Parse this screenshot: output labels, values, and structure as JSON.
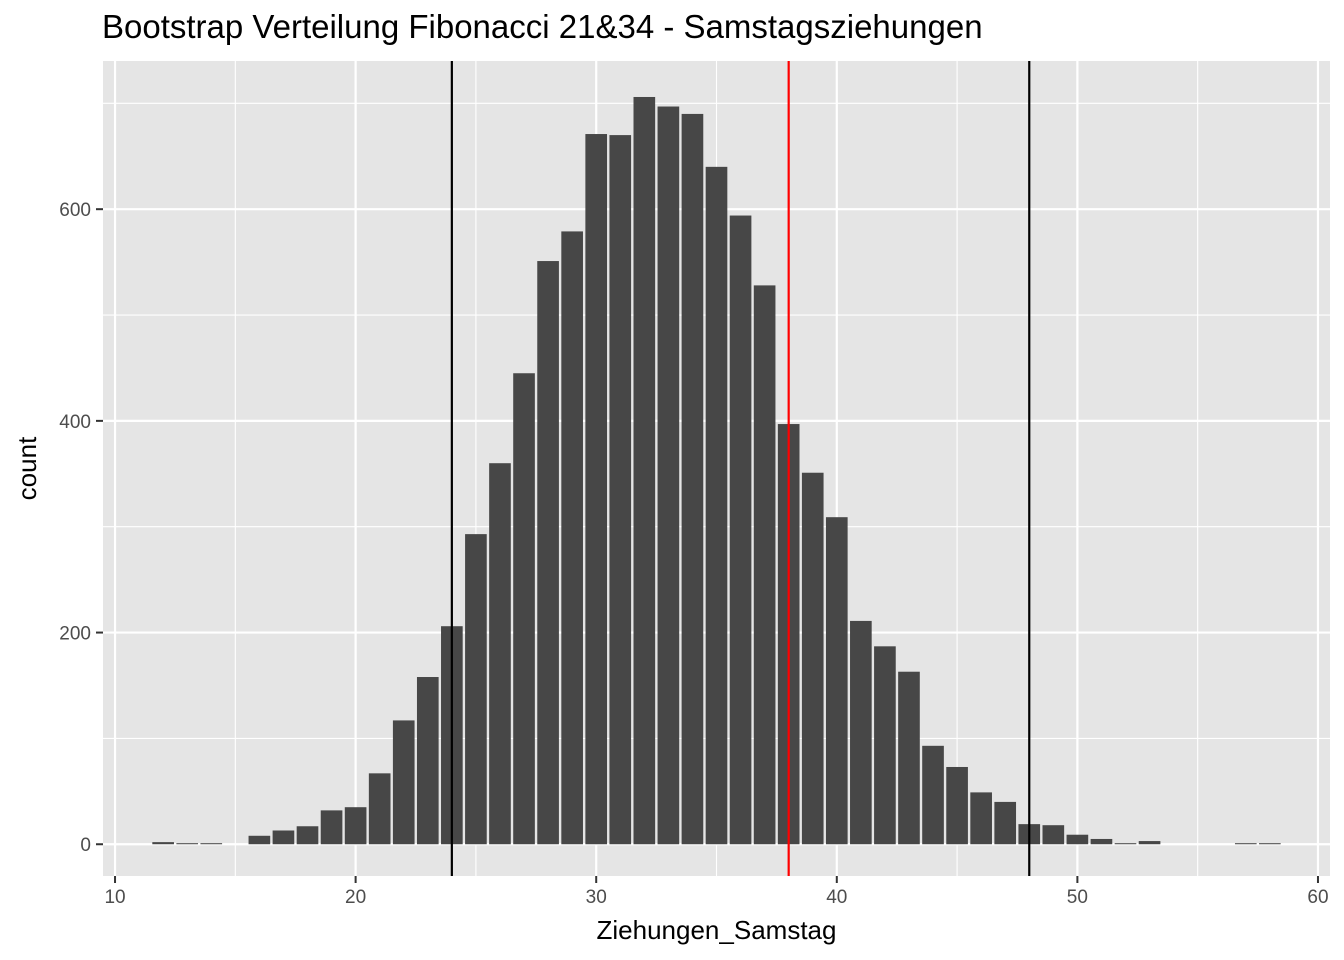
{
  "chart_data": {
    "type": "bar",
    "title": "Bootstrap Verteilung Fibonacci 21&34 - Samstagsziehungen",
    "xlabel": "Ziehungen_Samstag",
    "ylabel": "count",
    "xlim": [
      9.5,
      60.5
    ],
    "ylim": [
      -30,
      740
    ],
    "xticks": [
      10,
      20,
      30,
      40,
      50,
      60
    ],
    "yticks": [
      0,
      200,
      400,
      600
    ],
    "bar_width": 0.9,
    "x": [
      12,
      13,
      14,
      16,
      17,
      18,
      19,
      20,
      21,
      22,
      23,
      24,
      25,
      26,
      27,
      28,
      29,
      30,
      31,
      32,
      33,
      34,
      35,
      36,
      37,
      38,
      39,
      40,
      41,
      42,
      43,
      44,
      45,
      46,
      47,
      48,
      49,
      50,
      51,
      52,
      53,
      57,
      58
    ],
    "values": [
      2,
      1,
      1,
      8,
      13,
      17,
      32,
      35,
      67,
      117,
      158,
      206,
      293,
      360,
      445,
      551,
      579,
      671,
      670,
      706,
      697,
      690,
      640,
      594,
      528,
      397,
      351,
      309,
      211,
      187,
      163,
      93,
      73,
      49,
      40,
      19,
      18,
      9,
      5,
      1,
      3,
      1,
      1
    ],
    "bar_color": "#474747",
    "vlines": [
      {
        "x": 24,
        "color": "#000000"
      },
      {
        "x": 38,
        "color": "#ff0000"
      },
      {
        "x": 48,
        "color": "#000000"
      }
    ],
    "panel_background": "#e5e5e5",
    "grid_color": "#ffffff",
    "grid": true,
    "legend": "none"
  }
}
